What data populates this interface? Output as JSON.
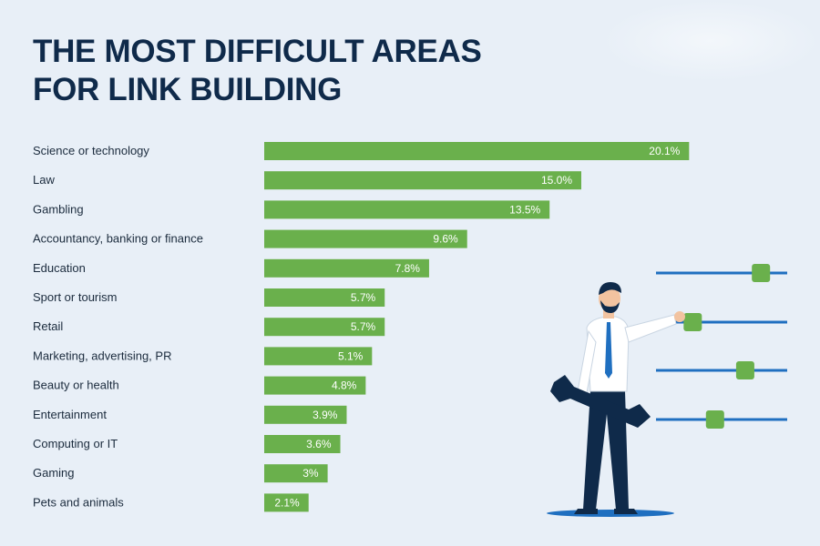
{
  "header": {
    "title_line1": "THE MOST DIFFICULT AREAS",
    "title_line2": "FOR LINK BUILDING"
  },
  "colors": {
    "background": "#e8eff7",
    "title": "#0f2a4a",
    "bar": "#6ab04c",
    "slider_track": "#1f6fc0",
    "slider_knob": "#6ab04c",
    "figure_suit": "#0f2a4a",
    "figure_shirt": "#ffffff",
    "figure_tie": "#1f6fc0"
  },
  "illustration": {
    "description_icon": "businessman-with-wrench-and-sliders-icon",
    "slider_levels": [
      0.8,
      0.28,
      0.68,
      0.45
    ]
  },
  "chart_data": {
    "type": "bar",
    "orientation": "horizontal",
    "categories": [
      "Science or technology",
      "Law",
      "Gambling",
      "Accountancy, banking or finance",
      "Education",
      "Sport or tourism",
      "Retail",
      "Marketing, advertising, PR",
      "Beauty or health",
      "Entertainment",
      "Computing or IT",
      "Gaming",
      "Pets and animals"
    ],
    "values": [
      20.1,
      15.0,
      13.5,
      9.6,
      7.8,
      5.7,
      5.7,
      5.1,
      4.8,
      3.9,
      3.6,
      3,
      2.1
    ],
    "value_labels": [
      "20.1%",
      "15.0%",
      "13.5%",
      "9.6%",
      "7.8%",
      "5.7%",
      "5.7%",
      "5.1%",
      "4.8%",
      "3.9%",
      "3.6%",
      "3%",
      "2.1%"
    ],
    "unit": "%",
    "title": "THE MOST DIFFICULT AREAS FOR LINK BUILDING",
    "xlabel": "",
    "ylabel": "",
    "grid": false,
    "legend": "none"
  }
}
